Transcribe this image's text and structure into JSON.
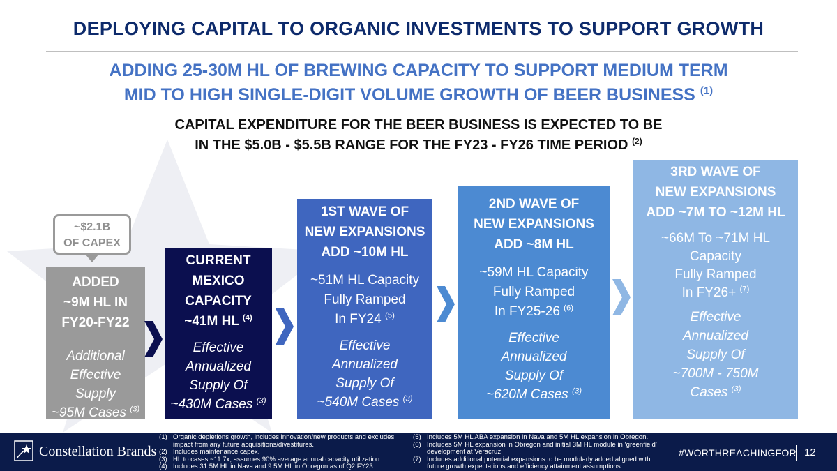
{
  "title": "DEPLOYING CAPITAL TO ORGANIC INVESTMENTS TO SUPPORT GROWTH",
  "subtitle": {
    "line1": "ADDING 25-30M HL OF BREWING CAPACITY TO SUPPORT MEDIUM TERM",
    "line2": "MID TO HIGH SINGLE-DIGIT VOLUME GROWTH OF BEER BUSINESS",
    "line2_note": "(1)"
  },
  "capex": {
    "line1": "CAPITAL EXPENDITURE FOR THE BEER BUSINESS IS EXPECTED TO BE",
    "line2": "IN THE $5.0B - $5.5B RANGE FOR THE FY23 - FY26 TIME PERIOD",
    "line2_note": "(2)"
  },
  "bubble": {
    "line1": "~$2.1B",
    "line2": "OF CAPEX"
  },
  "boxes": {
    "added": {
      "head": [
        "ADDED",
        "~9M HL IN",
        "FY20-FY22"
      ],
      "italic": [
        "Additional",
        "Effective",
        "Supply",
        "~95M Cases"
      ],
      "italic_note": "(3)"
    },
    "current": {
      "head": [
        "CURRENT",
        "MEXICO",
        "CAPACITY",
        "~41M HL"
      ],
      "head_note": "(4)",
      "italic": [
        "Effective",
        "Annualized",
        "Supply Of",
        "~430M Cases"
      ],
      "italic_note": "(3)"
    },
    "wave1": {
      "head": [
        "1ST WAVE OF",
        "NEW EXPANSIONS",
        "ADD ~10M HL"
      ],
      "detail": [
        "~51M HL Capacity",
        "Fully Ramped",
        "In FY24"
      ],
      "detail_note": "(5)",
      "italic": [
        "Effective",
        "Annualized",
        "Supply Of",
        "~540M Cases"
      ],
      "italic_note": "(3)"
    },
    "wave2": {
      "head": [
        "2ND WAVE OF",
        "NEW EXPANSIONS",
        "ADD ~8M HL"
      ],
      "detail": [
        "~59M HL Capacity",
        "Fully Ramped",
        "In FY25-26"
      ],
      "detail_note": "(6)",
      "italic": [
        "Effective",
        "Annualized",
        "Supply Of",
        "~620M Cases"
      ],
      "italic_note": "(3)"
    },
    "wave3": {
      "head": [
        "3RD WAVE OF",
        "NEW EXPANSIONS",
        "ADD ~7M TO ~12M HL"
      ],
      "detail": [
        "~66M To ~71M HL",
        "Capacity",
        "Fully Ramped",
        "In FY26+"
      ],
      "detail_note": "(7)",
      "italic": [
        "Effective",
        "Annualized",
        "Supply Of",
        "~700M - 750M",
        "Cases"
      ],
      "italic_note": "(3)"
    }
  },
  "footer": {
    "logo_text": "Constellation Brands",
    "notes_left": [
      {
        "num": "(1)",
        "text": "Organic depletions growth, includes innovation/new products and excludes impact from any future acquisitions/divestitures."
      },
      {
        "num": "(2)",
        "text": "Includes maintenance capex."
      },
      {
        "num": "(3)",
        "text": "HL to cases ~11.7x; assumes 90% average annual capacity utilization."
      },
      {
        "num": "(4)",
        "text": "Includes 31.5M HL in Nava and 9.5M HL in Obregon as of Q2 FY23."
      }
    ],
    "notes_right": [
      {
        "num": "(5)",
        "text": "Includes 5M HL ABA expansion in Nava and 5M HL expansion in Obregon."
      },
      {
        "num": "(6)",
        "text": "Includes 5M HL expansion in Obregon and initial 3M HL module in ‘greenfield’ development at Veracruz."
      },
      {
        "num": "(7)",
        "text": "Includes additional potential expansions to be modularly added aligned with future growth expectations and efficiency attainment assumptions."
      }
    ],
    "hashtag": "#WORTHREACHINGFOR",
    "page_number": "12"
  },
  "colors": {
    "title": "#0d2a6b",
    "subtitle": "#4472c4",
    "added": "#9a9a9a",
    "current": "#0b0f4f",
    "wave1": "#3f66bf",
    "wave2": "#4c8ad2",
    "wave3": "#8fb7e4",
    "footer": "#0b1b4a"
  }
}
